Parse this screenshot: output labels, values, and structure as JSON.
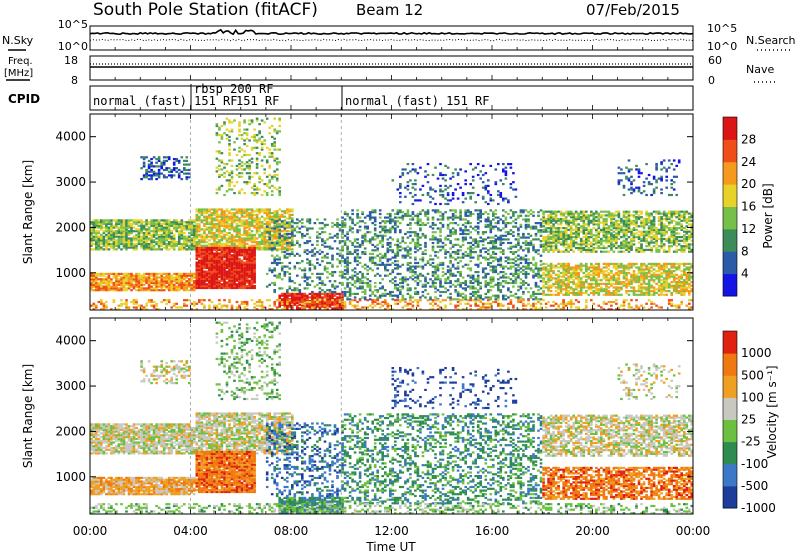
{
  "header": {
    "station": "South Pole Station (fitACF)",
    "beam": "Beam 12",
    "date": "07/Feb/2015"
  },
  "left_labels": {
    "nsky": "N.Sky",
    "freq_line1": "Freq.",
    "freq_line2": "[MHz]",
    "cpid": "CPID"
  },
  "right_labels": {
    "nsearch": "N.Search",
    "nave": "Nave"
  },
  "cpid_segments": [
    {
      "label": "normal (fast) 151 RF",
      "start_hour": 0,
      "end_hour": 4
    },
    {
      "label": "rbsp 200 RF",
      "start_hour": 4,
      "end_hour": 10
    },
    {
      "label": "151 RF",
      "start_hour": 4,
      "end_hour": 10
    },
    {
      "label": "normal (fast) 151 RF",
      "start_hour": 10,
      "end_hour": 24
    }
  ],
  "chart_data": [
    {
      "type": "line",
      "panel": "noise",
      "y_left_ticks": [
        "10^5",
        "10^0"
      ],
      "y_right_ticks": [
        "10^5",
        "10^0"
      ],
      "xlim": [
        0,
        24
      ]
    },
    {
      "type": "line",
      "panel": "frequency",
      "y_left_ticks": [
        "18",
        "8"
      ],
      "y_right_ticks": [
        "60",
        "0"
      ],
      "ylim_left": [
        8,
        18
      ],
      "ylim_right": [
        0,
        60
      ],
      "xlim": [
        0,
        24
      ]
    },
    {
      "type": "heatmap",
      "panel": "power",
      "ylabel": "Slant Range [km]",
      "y_ticks": [
        "1000",
        "2000",
        "3000",
        "4000"
      ],
      "ylim": [
        180,
        4500
      ],
      "xlim": [
        0,
        24
      ],
      "colorbar_label": "Power [dB]",
      "colorbar_ticks": [
        "4",
        "8",
        "12",
        "16",
        "20",
        "24",
        "28"
      ],
      "colorbar_colors": [
        "#1414e6",
        "#2a5aa8",
        "#3c8c5a",
        "#76c04a",
        "#e8d22a",
        "#f59a1c",
        "#f04e18",
        "#dc1414"
      ]
    },
    {
      "type": "heatmap",
      "panel": "velocity",
      "ylabel": "Slant Range [km]",
      "y_ticks": [
        "1000",
        "2000",
        "3000",
        "4000"
      ],
      "ylim": [
        180,
        4500
      ],
      "xlim": [
        0,
        24
      ],
      "xlabel": "Time UT",
      "x_ticks": [
        "00:00",
        "04:00",
        "08:00",
        "12:00",
        "16:00",
        "20:00",
        "00:00"
      ],
      "colorbar_label": "Velocity [m s⁻¹]",
      "colorbar_ticks": [
        "1000",
        "500",
        "100",
        "25",
        "-25",
        "-100",
        "-500",
        "-1000"
      ],
      "colorbar_colors": [
        "#1e3c9c",
        "#3c78c8",
        "#2e8c50",
        "#6cc040",
        "#c8c8c0",
        "#f0a020",
        "#f07810",
        "#e02010"
      ]
    }
  ]
}
